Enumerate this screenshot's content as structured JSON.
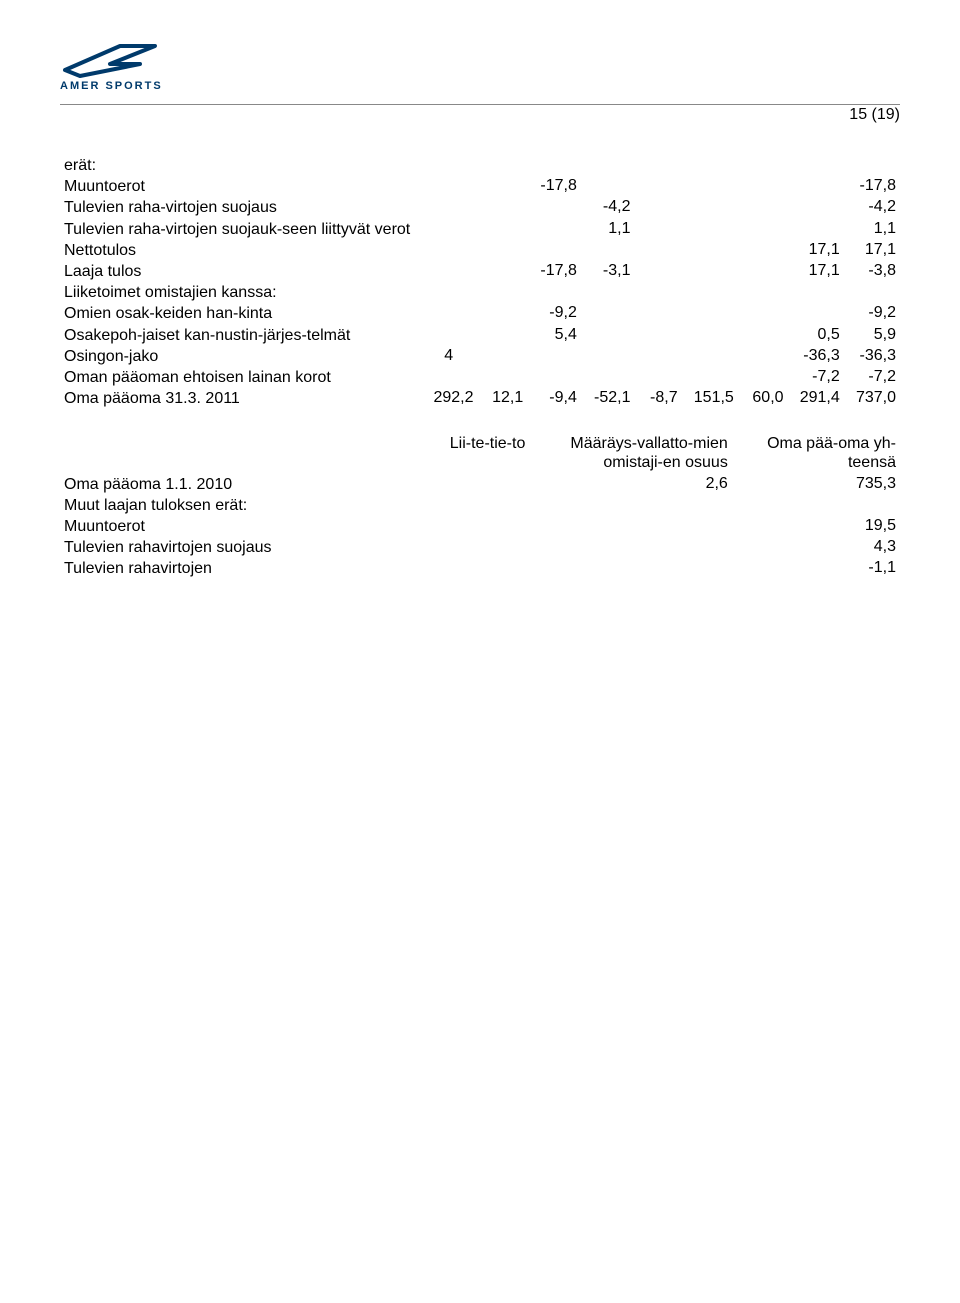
{
  "page_number": "15 (19)",
  "logo_name": "AMER SPORTS",
  "logo_colors": {
    "primary": "#003a6b"
  },
  "table1": {
    "rows": [
      {
        "label": "erät:",
        "c3": "",
        "c4": "",
        "c9": ""
      },
      {
        "label": "Muuntoerot",
        "c3": "-17,8",
        "c4": "",
        "c9": "-17,8"
      },
      {
        "label": "Tulevien raha-virtojen suojaus",
        "c3": "",
        "c4": "-4,2",
        "c9": "-4,2"
      },
      {
        "label": "Tulevien raha-virtojen suojauk-seen liittyvät verot",
        "c3": "",
        "c4": "1,1",
        "c9": "1,1"
      },
      {
        "label": "Nettotulos",
        "c3": "",
        "c4": "",
        "c8": "17,1",
        "c9": "17,1"
      },
      {
        "label": "Laaja tulos",
        "c3": "-17,8",
        "c4": "-3,1",
        "c8": "17,1",
        "c9": "-3,8"
      },
      {
        "label": "Liiketoimet omistajien kanssa:",
        "c3": "",
        "c4": "",
        "c9": ""
      },
      {
        "label": "Omien osak-keiden han-kinta",
        "c3": "-9,2",
        "c4": "",
        "c9": "-9,2"
      },
      {
        "label": "Osakepoh-jaiset kan-nustin-järjes-telmät",
        "c3": "5,4",
        "c4": "",
        "c8": "0,5",
        "c9": "5,9"
      },
      {
        "label": "Osingon-jako",
        "c1b": "4",
        "c3": "",
        "c4": "",
        "c8": "-36,3",
        "c9": "-36,3"
      },
      {
        "label": "Oman pääoman ehtoisen lainan korot",
        "c3": "",
        "c4": "",
        "c8": "-7,2",
        "c9": "-7,2"
      },
      {
        "label": "Oma pääoma 31.3. 2011",
        "c1": "292,2",
        "c2": "12,1",
        "c3": "-9,4",
        "c4": "-52,1",
        "c5": "-8,7",
        "c6": "151,5",
        "c7": "60,0",
        "c8": "291,4",
        "c9": "737,0"
      }
    ]
  },
  "table2": {
    "headers": {
      "h1": "Lii-te-tie-to",
      "h2": "Määräys-vallatto-mien omistaji-en osuus",
      "h3": "Oma pää-oma yh-teensä"
    },
    "rows": [
      {
        "label": "Oma pääoma 1.1. 2010",
        "c2": "2,6",
        "c3": "735,3"
      },
      {
        "label": "Muut laajan tuloksen erät:",
        "c2": "",
        "c3": ""
      },
      {
        "label": "Muuntoerot",
        "c2": "",
        "c3": "19,5"
      },
      {
        "label": "Tulevien rahavirtojen suojaus",
        "c2": "",
        "c3": "4,3"
      },
      {
        "label": "Tulevien rahavirtojen",
        "c2": "",
        "c3": "-1,1"
      }
    ]
  }
}
